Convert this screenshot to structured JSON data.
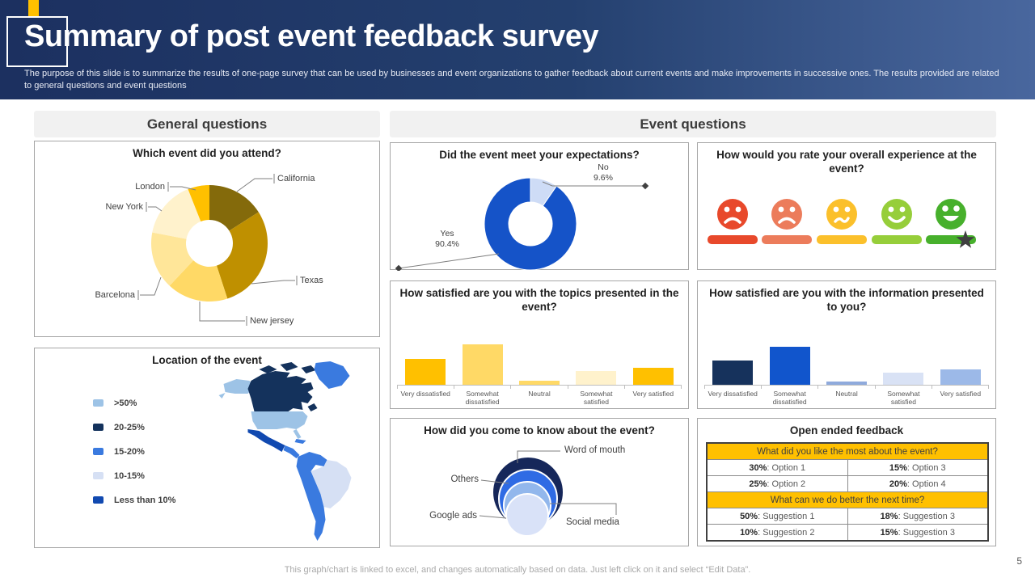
{
  "slide": {
    "title": "Summary of post event feedback survey",
    "subtitle": "The purpose of this slide is to summarize the results of one-page survey that can be used by businesses and event organizations to gather feedback about current events and make improvements in successive ones. The results provided are related to general questions and event questions",
    "page_number": "5",
    "footer_note": "This graph/chart is linked to excel, and changes automatically based on data. Just left click on it and select “Edit Data”.",
    "accent_color": "#FFC000"
  },
  "section_headers": {
    "general": "General questions",
    "event": "Event questions"
  },
  "colors": {
    "header_gradient_left": "#1C3060",
    "header_gradient_right": "#49679E",
    "panel_border": "#A6A6A6",
    "axis": "#BFBFBF",
    "leader_line": "#7F7F7F",
    "category_text": "#595959",
    "title_text": "#1F1F1F"
  },
  "chart_data": [
    {
      "id": "event-attended",
      "type": "pie",
      "subtype": "donut",
      "title": "Which event did you attend?",
      "labels": [
        "California",
        "Texas",
        "New jersey",
        "Barcelona",
        "New York",
        "London"
      ],
      "values": [
        16,
        29,
        17,
        16,
        16,
        6
      ],
      "colors": [
        "#846A0B",
        "#BF9000",
        "#FFD966",
        "#FFE699",
        "#FFF2CC",
        "#FFC000"
      ],
      "note": "segments clockwise from 12 o'clock; values are estimated percents (no data labels shown)"
    },
    {
      "id": "event-location",
      "type": "heatmap",
      "subtype": "choropleth-map-americas",
      "title": "Location of the event",
      "legend": [
        {
          "label": ">50%",
          "color": "#9DC3E6"
        },
        {
          "label": "20-25%",
          "color": "#14325C"
        },
        {
          "label": "15-20%",
          "color": "#3A7ADF"
        },
        {
          "label": "10-15%",
          "color": "#D6E0F4"
        },
        {
          "label": "Less than 10%",
          "color": "#1149B0"
        }
      ],
      "regions": [
        {
          "name": "alaska",
          "bucket": ">50%"
        },
        {
          "name": "canada",
          "bucket": "20-25%"
        },
        {
          "name": "greenland",
          "bucket": "15-20%"
        },
        {
          "name": "united-states",
          "bucket": ">50%"
        },
        {
          "name": "mexico",
          "bucket": "Less than 10%"
        },
        {
          "name": "central-america",
          "bucket": "15-20%"
        },
        {
          "name": "caribbean",
          "bucket": "15-20%"
        },
        {
          "name": "andean-south-america",
          "bucket": "15-20%"
        },
        {
          "name": "brazil",
          "bucket": "10-15%"
        }
      ]
    },
    {
      "id": "met-expectations",
      "type": "pie",
      "subtype": "donut",
      "title": "Did the event meet your expectations?",
      "labels": [
        "No",
        "Yes"
      ],
      "values": [
        9.6,
        90.4
      ],
      "value_labels": [
        "9.6%",
        "90.4%"
      ],
      "colors": [
        "#CEDCF6",
        "#1553C8"
      ]
    },
    {
      "id": "overall-experience",
      "type": "table",
      "subtype": "emoji-rating-scale",
      "title": "How would you rate your overall experience at the event?",
      "items": [
        {
          "label": "very dissatisfied",
          "color": "#E8492B"
        },
        {
          "label": "dissatisfied",
          "color": "#EC7C5B"
        },
        {
          "label": "neutral",
          "color": "#FBC02B"
        },
        {
          "label": "satisfied",
          "color": "#96CE3A"
        },
        {
          "label": "very satisfied",
          "color": "#47B02C"
        }
      ],
      "marker": {
        "shape": "star",
        "color": "#3F3F3F",
        "position": "very satisfied"
      }
    },
    {
      "id": "topics-satisfaction",
      "type": "bar",
      "title": "How satisfied are you with the topics presented in the event?",
      "categories": [
        "Very dissatisfied",
        "Somewhat dissatisfied",
        "Neutral",
        "Somewhat satisfied",
        "Very satisfied"
      ],
      "values": [
        45,
        70,
        7,
        24,
        29
      ],
      "colors": [
        "#FFC000",
        "#FFD966",
        "#FFD966",
        "#FFF2CC",
        "#FFC000"
      ],
      "ylim": [
        0,
        100
      ],
      "note": "no value axis shown; heights estimated as percents of plot height"
    },
    {
      "id": "information-satisfaction",
      "type": "bar",
      "title": "How satisfied are you with the information presented to you?",
      "categories": [
        "Very dissatisfied",
        "Somewhat dissatisfied",
        "Neutral",
        "Somewhat satisfied",
        "Very satisfied"
      ],
      "values": [
        42,
        65,
        6,
        21,
        27
      ],
      "colors": [
        "#16325C",
        "#1155CC",
        "#8FAADC",
        "#D9E2F5",
        "#9CB9E8"
      ],
      "ylim": [
        0,
        100
      ],
      "note": "no value axis shown; heights estimated as percents of plot height"
    },
    {
      "id": "know-about-event",
      "type": "scatter",
      "subtype": "nested-bubbles",
      "title": "How did you come to know about the event?",
      "items": [
        {
          "label": "Word of mouth",
          "radius": 44,
          "color": "#16275A"
        },
        {
          "label": "Others",
          "radius": 36,
          "color": "#2F6BE4"
        },
        {
          "label": "Social media",
          "radius": 29,
          "color": "#92B7EC"
        },
        {
          "label": "Google ads",
          "radius": 26,
          "color": "#D9E2F8"
        }
      ],
      "note": "bubble radii in px, proportional to share; no numeric labels shown"
    },
    {
      "id": "open-ended-feedback",
      "type": "table",
      "title": "Open ended feedback",
      "header_bg": "#FFC000",
      "sections": [
        {
          "header": "What did you like the most about the event?",
          "rows": [
            [
              {
                "pct": "30%",
                "label": "Option 1"
              },
              {
                "pct": "15%",
                "label": "Option 3"
              }
            ],
            [
              {
                "pct": "25%",
                "label": "Option 2"
              },
              {
                "pct": "20%",
                "label": "Option 4"
              }
            ]
          ]
        },
        {
          "header": "What can we do better the next time?",
          "rows": [
            [
              {
                "pct": "50%",
                "label": "Suggestion 1"
              },
              {
                "pct": "18%",
                "label": "Suggestion 3"
              }
            ],
            [
              {
                "pct": "10%",
                "label": "Suggestion 2"
              },
              {
                "pct": "15%",
                "label": "Suggestion 3"
              }
            ]
          ]
        }
      ]
    }
  ]
}
